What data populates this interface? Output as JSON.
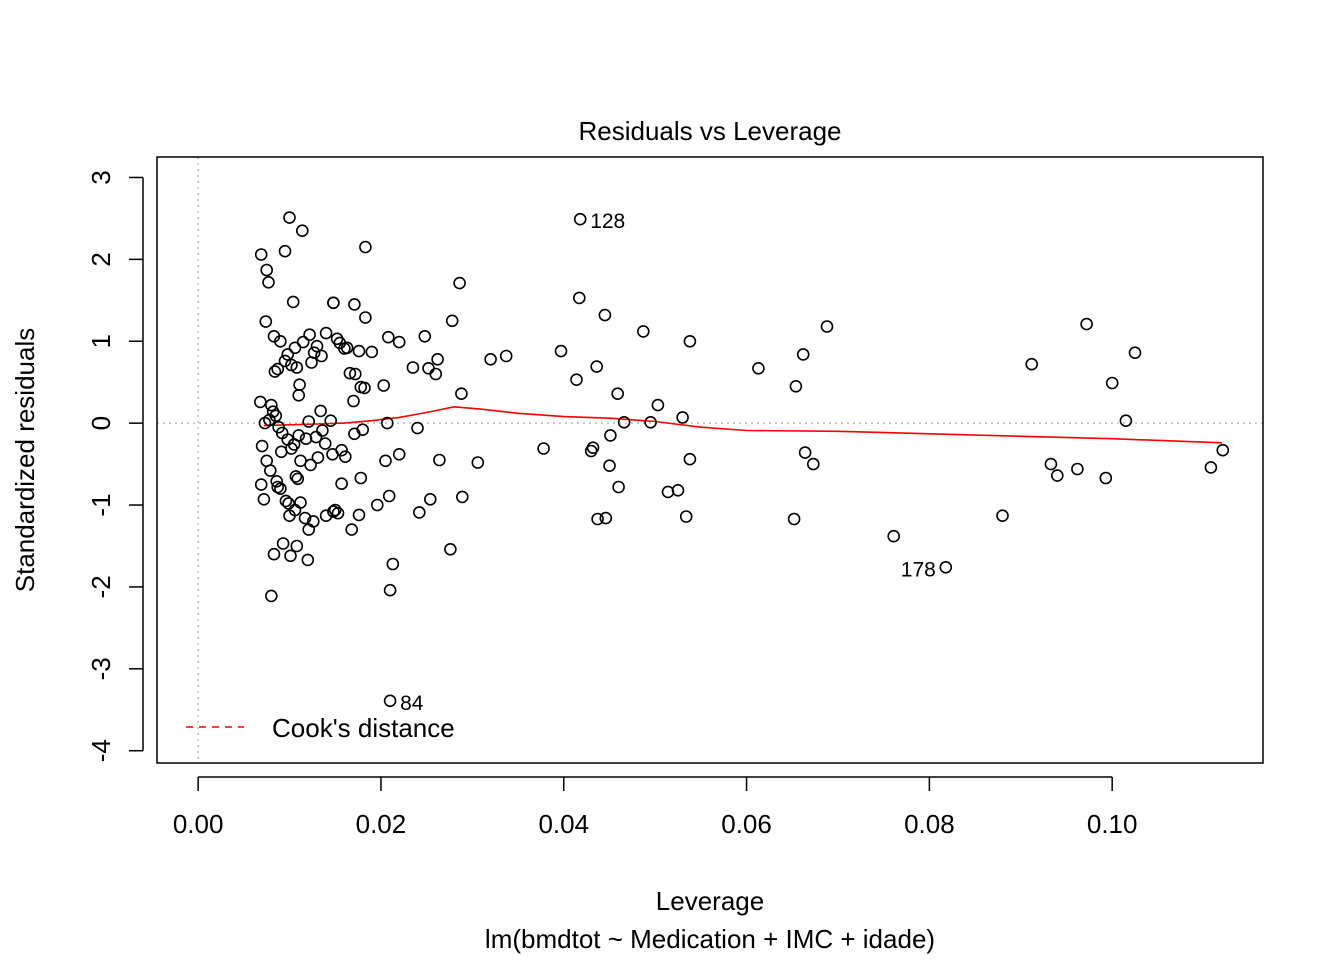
{
  "chart_data": {
    "type": "scatter",
    "title": "Residuals vs Leverage",
    "xlabel": "Leverage",
    "subtitle": "lm(bmdtot ~ Medication + IMC + idade)",
    "ylabel": "Standardized residuals",
    "xlim": [
      -0.0045,
      0.1165
    ],
    "ylim": [
      -4.15,
      3.25
    ],
    "x_ticks": [
      0.0,
      0.02,
      0.04,
      0.06,
      0.08,
      0.1
    ],
    "x_tick_labels": [
      "0.00",
      "0.02",
      "0.04",
      "0.06",
      "0.08",
      "0.10"
    ],
    "y_ticks": [
      -4,
      -3,
      -2,
      -1,
      0,
      1,
      2,
      3
    ],
    "y_tick_labels": [
      "-4",
      "-3",
      "-2",
      "-1",
      "0",
      "1",
      "2",
      "3"
    ],
    "reference_lines": {
      "x": 0,
      "y": 0,
      "style": "dotted",
      "color": "#bebebe"
    },
    "legend": {
      "position": "bottom-left",
      "entries": [
        {
          "label": "Cook's distance",
          "color": "#ff0000",
          "style": "dashed"
        }
      ]
    },
    "smooth": {
      "color": "#ff0000",
      "points": [
        [
          0.0072,
          -0.03
        ],
        [
          0.01,
          -0.02
        ],
        [
          0.013,
          -0.01
        ],
        [
          0.016,
          0.0
        ],
        [
          0.019,
          0.03
        ],
        [
          0.022,
          0.07
        ],
        [
          0.025,
          0.13
        ],
        [
          0.028,
          0.2
        ],
        [
          0.031,
          0.17
        ],
        [
          0.035,
          0.12
        ],
        [
          0.04,
          0.08
        ],
        [
          0.045,
          0.06
        ],
        [
          0.05,
          0.02
        ],
        [
          0.055,
          -0.05
        ],
        [
          0.06,
          -0.09
        ],
        [
          0.07,
          -0.1
        ],
        [
          0.08,
          -0.13
        ],
        [
          0.09,
          -0.16
        ],
        [
          0.1,
          -0.19
        ],
        [
          0.112,
          -0.24
        ]
      ]
    },
    "labeled_points": [
      {
        "id": "128",
        "x": 0.0418,
        "y": 2.49,
        "label_side": "right"
      },
      {
        "id": "178",
        "x": 0.0818,
        "y": -1.76,
        "label_side": "left"
      },
      {
        "id": "84",
        "x": 0.021,
        "y": -3.39,
        "label_side": "right"
      }
    ],
    "points": [
      [
        0.0069,
        2.06
      ],
      [
        0.0075,
        1.87
      ],
      [
        0.0077,
        1.72
      ],
      [
        0.0074,
        1.24
      ],
      [
        0.0083,
        1.06
      ],
      [
        0.009,
        1.0
      ],
      [
        0.0095,
        0.76
      ],
      [
        0.0087,
        0.66
      ],
      [
        0.0102,
        0.71
      ],
      [
        0.0108,
        0.68
      ],
      [
        0.0115,
        0.99
      ],
      [
        0.0122,
        1.08
      ],
      [
        0.013,
        0.94
      ],
      [
        0.0135,
        0.82
      ],
      [
        0.014,
        1.1
      ],
      [
        0.0148,
        1.47
      ],
      [
        0.0152,
        1.03
      ],
      [
        0.016,
        0.91
      ],
      [
        0.0104,
        1.48
      ],
      [
        0.0068,
        0.26
      ],
      [
        0.008,
        0.22
      ],
      [
        0.0082,
        0.14
      ],
      [
        0.0085,
        0.09
      ],
      [
        0.0078,
        0.04
      ],
      [
        0.0073,
        0.0
      ],
      [
        0.0088,
        -0.05
      ],
      [
        0.0092,
        -0.12
      ],
      [
        0.0098,
        -0.2
      ],
      [
        0.0105,
        -0.26
      ],
      [
        0.011,
        -0.15
      ],
      [
        0.007,
        -0.28
      ],
      [
        0.0075,
        -0.46
      ],
      [
        0.0079,
        -0.58
      ],
      [
        0.0086,
        -0.71
      ],
      [
        0.009,
        -0.8
      ],
      [
        0.0096,
        -0.95
      ],
      [
        0.01,
        -1.13
      ],
      [
        0.0106,
        -1.06
      ],
      [
        0.0112,
        -0.97
      ],
      [
        0.0117,
        -1.16
      ],
      [
        0.0121,
        -1.3
      ],
      [
        0.0126,
        -1.2
      ],
      [
        0.0093,
        -1.47
      ],
      [
        0.0083,
        -1.6
      ],
      [
        0.0101,
        -1.62
      ],
      [
        0.0108,
        -1.5
      ],
      [
        0.012,
        -1.67
      ],
      [
        0.008,
        -2.11
      ],
      [
        0.0069,
        -0.75
      ],
      [
        0.0072,
        -0.93
      ],
      [
        0.01,
        2.51
      ],
      [
        0.0114,
        2.35
      ],
      [
        0.0095,
        2.1
      ],
      [
        0.0183,
        2.15
      ],
      [
        0.0148,
        1.47
      ],
      [
        0.0171,
        1.45
      ],
      [
        0.0183,
        1.29
      ],
      [
        0.0155,
        0.98
      ],
      [
        0.0163,
        0.92
      ],
      [
        0.0172,
        0.6
      ],
      [
        0.0178,
        0.44
      ],
      [
        0.0182,
        0.43
      ],
      [
        0.0166,
        0.61
      ],
      [
        0.019,
        0.87
      ],
      [
        0.0176,
        0.88
      ],
      [
        0.0208,
        1.05
      ],
      [
        0.022,
        0.99
      ],
      [
        0.0248,
        1.06
      ],
      [
        0.0262,
        0.78
      ],
      [
        0.0235,
        0.68
      ],
      [
        0.0252,
        0.67
      ],
      [
        0.026,
        0.6
      ],
      [
        0.0203,
        0.46
      ],
      [
        0.017,
        0.27
      ],
      [
        0.0145,
        0.03
      ],
      [
        0.0134,
        0.15
      ],
      [
        0.0121,
        0.02
      ],
      [
        0.0139,
        -0.25
      ],
      [
        0.0147,
        -0.38
      ],
      [
        0.0157,
        -0.33
      ],
      [
        0.0161,
        -0.41
      ],
      [
        0.0171,
        -0.13
      ],
      [
        0.018,
        -0.08
      ],
      [
        0.0207,
        0.0
      ],
      [
        0.024,
        -0.06
      ],
      [
        0.0264,
        -0.45
      ],
      [
        0.022,
        -0.38
      ],
      [
        0.0205,
        -0.46
      ],
      [
        0.0178,
        -0.67
      ],
      [
        0.0157,
        -0.74
      ],
      [
        0.015,
        -1.06
      ],
      [
        0.0153,
        -1.1
      ],
      [
        0.0148,
        -1.08
      ],
      [
        0.014,
        -1.13
      ],
      [
        0.0168,
        -1.3
      ],
      [
        0.0176,
        -1.12
      ],
      [
        0.0196,
        -1.0
      ],
      [
        0.0209,
        -0.89
      ],
      [
        0.0242,
        -1.09
      ],
      [
        0.0254,
        -0.93
      ],
      [
        0.0289,
        -0.9
      ],
      [
        0.0276,
        -1.54
      ],
      [
        0.0213,
        -1.72
      ],
      [
        0.021,
        -2.04
      ],
      [
        0.021,
        -3.39
      ],
      [
        0.0278,
        1.25
      ],
      [
        0.0286,
        1.71
      ],
      [
        0.0288,
        0.36
      ],
      [
        0.032,
        0.78
      ],
      [
        0.0337,
        0.82
      ],
      [
        0.0306,
        -0.48
      ],
      [
        0.0378,
        -0.31
      ],
      [
        0.0397,
        0.88
      ],
      [
        0.0414,
        0.53
      ],
      [
        0.0418,
        2.49
      ],
      [
        0.0417,
        1.53
      ],
      [
        0.0445,
        1.32
      ],
      [
        0.0436,
        0.69
      ],
      [
        0.0459,
        0.36
      ],
      [
        0.0487,
        1.12
      ],
      [
        0.0451,
        -0.15
      ],
      [
        0.0466,
        0.01
      ],
      [
        0.043,
        -0.34
      ],
      [
        0.0432,
        -0.3
      ],
      [
        0.045,
        -0.52
      ],
      [
        0.046,
        -0.78
      ],
      [
        0.0437,
        -1.17
      ],
      [
        0.0446,
        -1.16
      ],
      [
        0.0495,
        0.01
      ],
      [
        0.0503,
        0.22
      ],
      [
        0.0514,
        -0.84
      ],
      [
        0.0525,
        -0.82
      ],
      [
        0.053,
        0.07
      ],
      [
        0.0534,
        -1.14
      ],
      [
        0.0538,
        1.0
      ],
      [
        0.0538,
        -0.44
      ],
      [
        0.0613,
        0.67
      ],
      [
        0.0652,
        -1.17
      ],
      [
        0.0654,
        0.45
      ],
      [
        0.0662,
        0.84
      ],
      [
        0.0664,
        -0.36
      ],
      [
        0.0673,
        -0.5
      ],
      [
        0.0688,
        1.18
      ],
      [
        0.0761,
        -1.38
      ],
      [
        0.0818,
        -1.76
      ],
      [
        0.088,
        -1.13
      ],
      [
        0.0912,
        0.72
      ],
      [
        0.0933,
        -0.5
      ],
      [
        0.094,
        -0.64
      ],
      [
        0.0962,
        -0.56
      ],
      [
        0.0972,
        1.21
      ],
      [
        0.0993,
        -0.67
      ],
      [
        0.1,
        0.49
      ],
      [
        0.1015,
        0.03
      ],
      [
        0.1025,
        0.86
      ],
      [
        0.1108,
        -0.54
      ],
      [
        0.1121,
        -0.33
      ],
      [
        0.011,
        0.34
      ],
      [
        0.0123,
        -0.51
      ],
      [
        0.0131,
        -0.42
      ],
      [
        0.0118,
        -0.19
      ],
      [
        0.0091,
        -0.35
      ],
      [
        0.0127,
        0.86
      ],
      [
        0.0106,
        0.92
      ],
      [
        0.0098,
        0.84
      ],
      [
        0.0102,
        -0.31
      ],
      [
        0.0107,
        -0.65
      ],
      [
        0.0112,
        -0.46
      ],
      [
        0.0129,
        -0.17
      ],
      [
        0.0136,
        -0.09
      ],
      [
        0.0084,
        0.63
      ],
      [
        0.0111,
        0.47
      ],
      [
        0.0124,
        0.74
      ],
      [
        0.0099,
        -0.98
      ],
      [
        0.0087,
        -0.78
      ],
      [
        0.0109,
        -0.68
      ]
    ]
  }
}
